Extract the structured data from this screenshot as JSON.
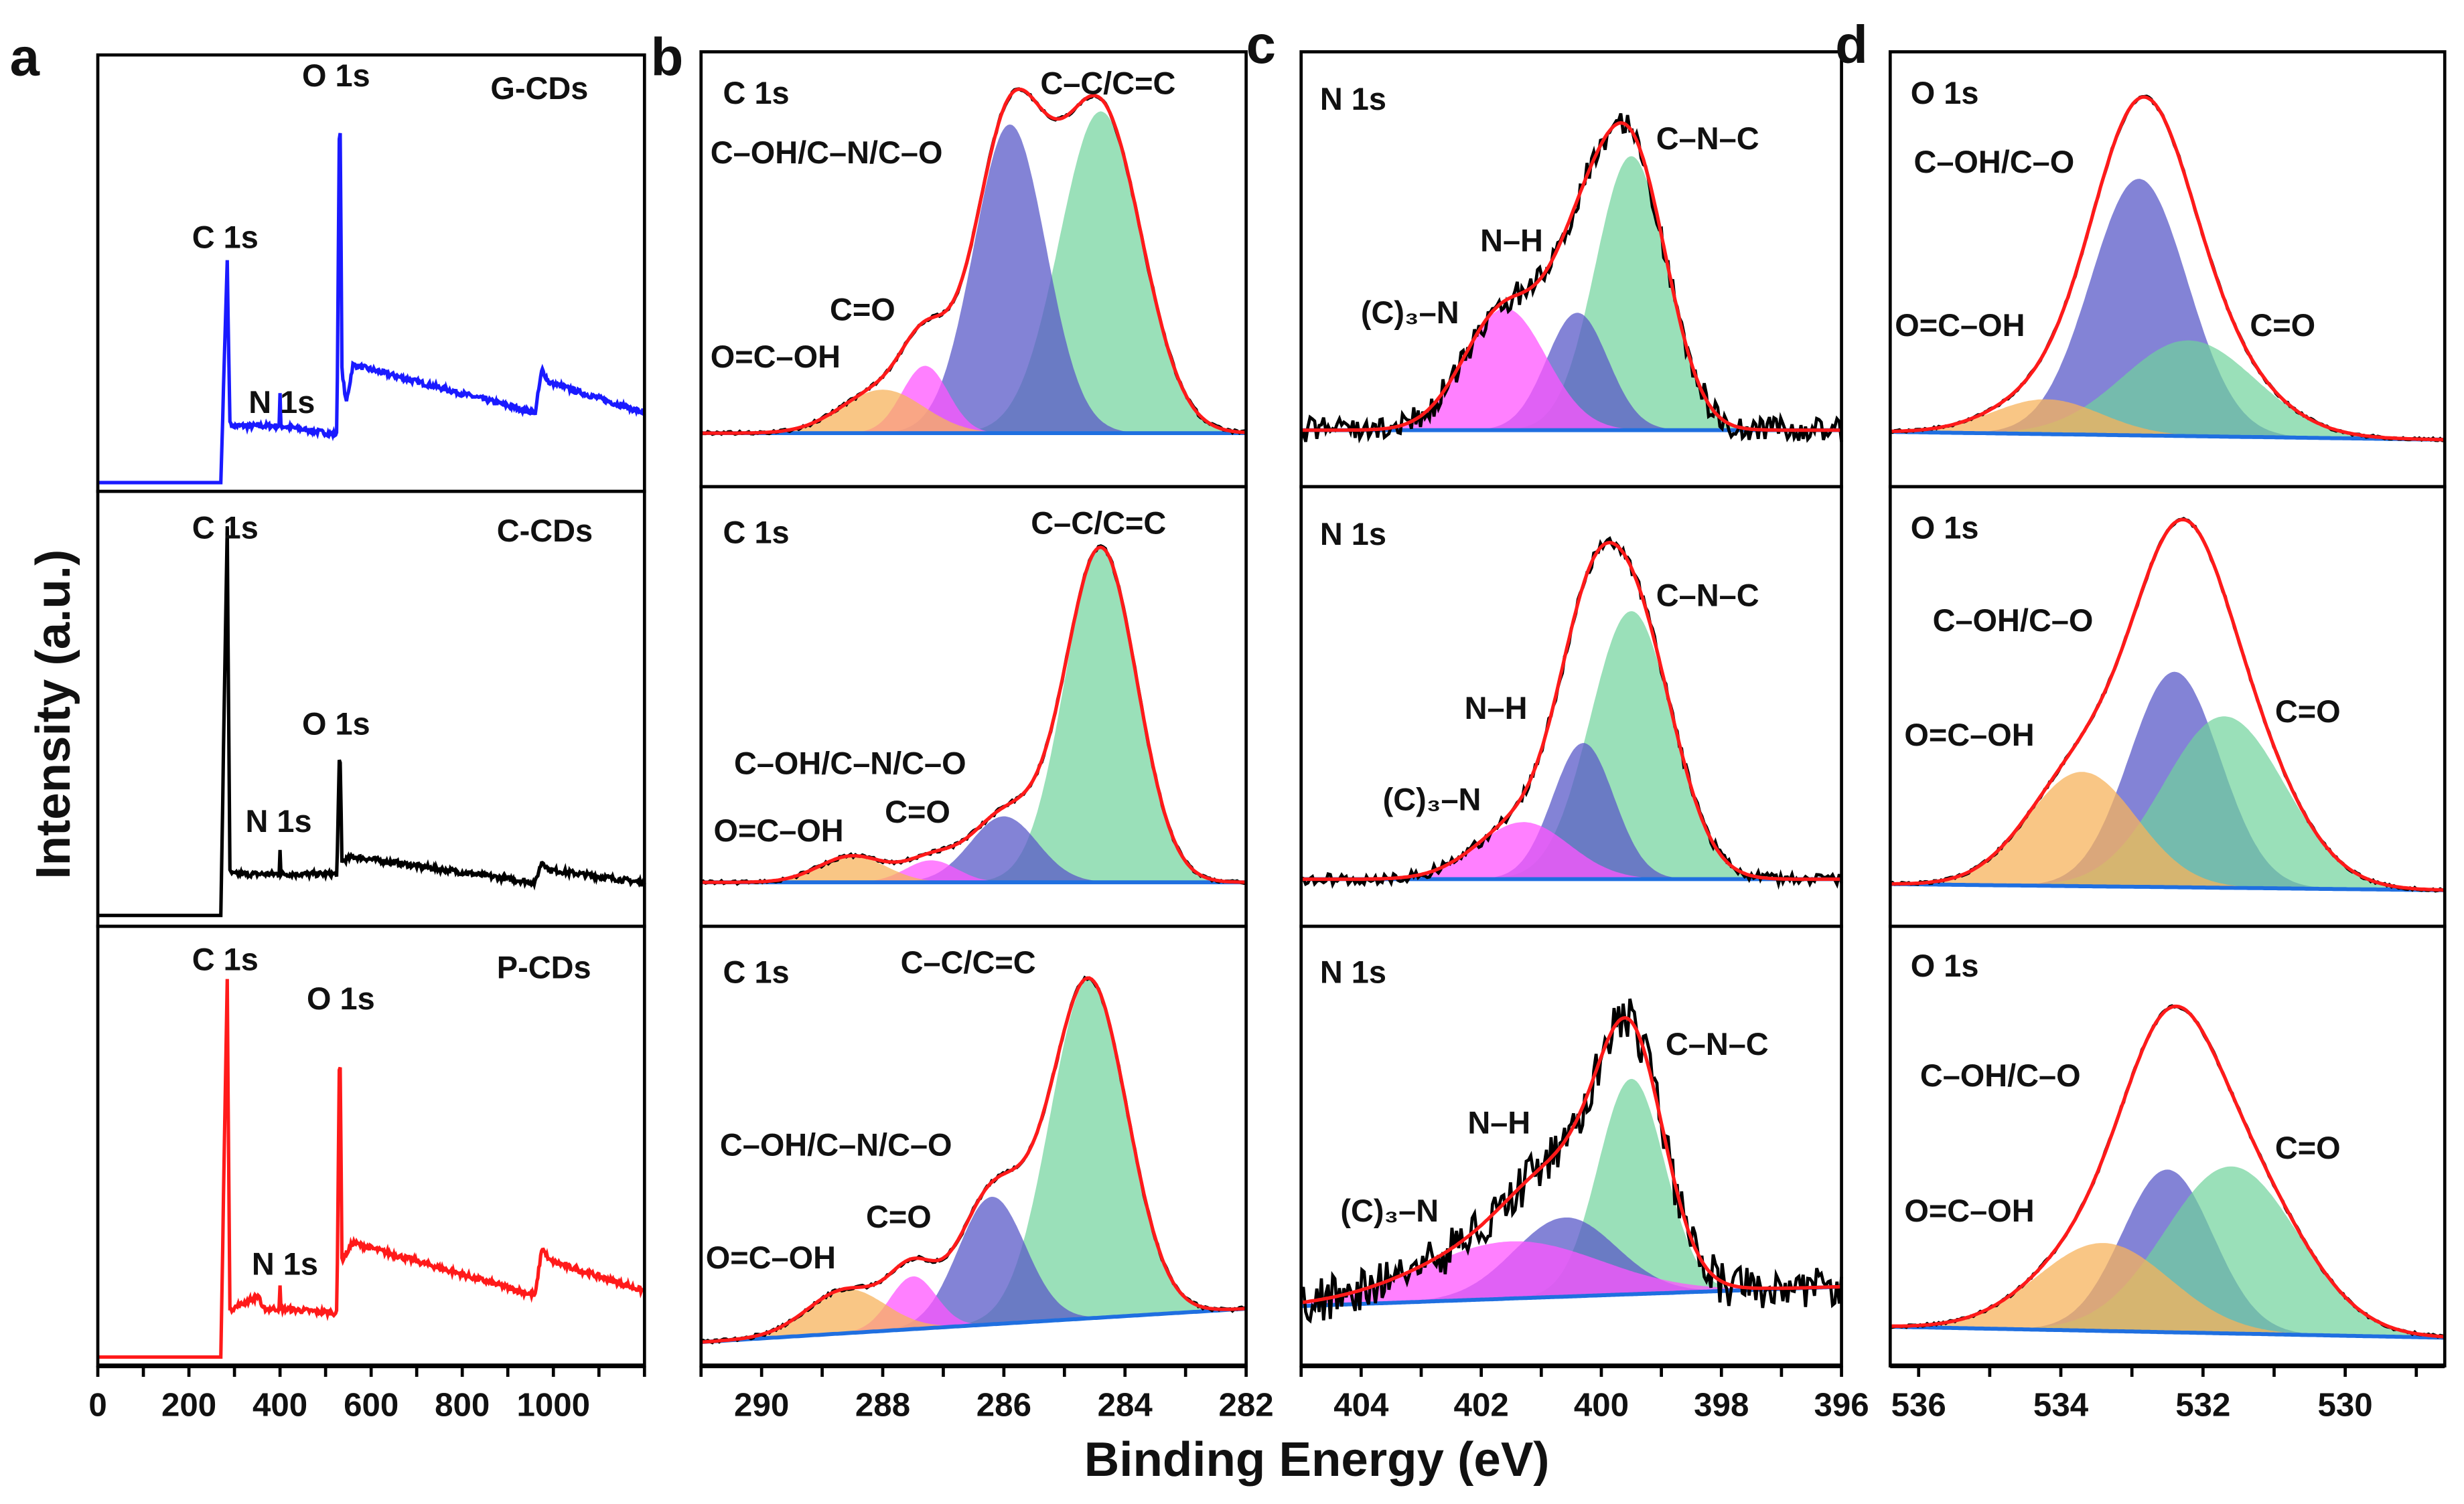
{
  "axis_titles": {
    "x": "Binding Energy (eV)",
    "y": "Intensity (a.u.)"
  },
  "colors": {
    "green": "#6fd39b",
    "blue": "#5a5ac8",
    "magenta": "#ff55ff",
    "orange": "#f7b35c",
    "fit": "#ff1a1a",
    "data": "#000000",
    "baseline": "#1f6fe0",
    "G-CDs": "#1a1aff",
    "C-CDs": "#000000",
    "P-CDs": "#ff1a1a"
  },
  "chart_data": [
    {
      "panel": "a",
      "type": "line",
      "xlim": [
        0,
        1200
      ],
      "ylim": [
        0,
        1
      ],
      "ticks": [
        0,
        200,
        400,
        600,
        800,
        1000
      ],
      "tick_labels": [
        "0",
        "200",
        "400",
        "600",
        "800",
        "1000"
      ],
      "subplots": [
        {
          "sample": "G-CDs",
          "color_key": "G-CDs",
          "labels": [
            "O 1s",
            "C 1s",
            "N 1s"
          ],
          "points": [
            [
              0,
              0.02
            ],
            [
              270,
              0.02
            ],
            [
              284,
              0.53
            ],
            [
              290,
              0.16
            ],
            [
              295,
              0.15
            ],
            [
              398,
              0.15
            ],
            [
              400,
              0.22
            ],
            [
              402,
              0.15
            ],
            [
              525,
              0.13
            ],
            [
              531,
              0.95
            ],
            [
              536,
              0.28
            ],
            [
              545,
              0.2
            ],
            [
              560,
              0.29
            ],
            [
              960,
              0.18
            ],
            [
              975,
              0.28
            ],
            [
              990,
              0.25
            ],
            [
              1200,
              0.18
            ]
          ]
        },
        {
          "sample": "C-CDs",
          "color_key": "C-CDs",
          "labels": [
            "C 1s",
            "O 1s",
            "N 1s"
          ],
          "points": [
            [
              0,
              0.025
            ],
            [
              270,
              0.025
            ],
            [
              284,
              0.92
            ],
            [
              290,
              0.13
            ],
            [
              295,
              0.12
            ],
            [
              398,
              0.12
            ],
            [
              400,
              0.18
            ],
            [
              402,
              0.12
            ],
            [
              525,
              0.12
            ],
            [
              531,
              0.43
            ],
            [
              536,
              0.15
            ],
            [
              560,
              0.16
            ],
            [
              960,
              0.1
            ],
            [
              975,
              0.15
            ],
            [
              990,
              0.13
            ],
            [
              1200,
              0.1
            ]
          ]
        },
        {
          "sample": "P-CDs",
          "color_key": "P-CDs",
          "labels": [
            "C 1s",
            "O 1s",
            "N 1s"
          ],
          "points": [
            [
              0,
              0.02
            ],
            [
              270,
              0.02
            ],
            [
              284,
              0.88
            ],
            [
              290,
              0.13
            ],
            [
              295,
              0.13
            ],
            [
              355,
              0.16
            ],
            [
              360,
              0.13
            ],
            [
              398,
              0.13
            ],
            [
              400,
              0.18
            ],
            [
              402,
              0.13
            ],
            [
              525,
              0.12
            ],
            [
              531,
              0.79
            ],
            [
              536,
              0.24
            ],
            [
              560,
              0.28
            ],
            [
              960,
              0.16
            ],
            [
              975,
              0.27
            ],
            [
              990,
              0.24
            ],
            [
              1200,
              0.17
            ]
          ]
        }
      ]
    },
    {
      "panel": "b",
      "type": "area",
      "xlim": [
        291,
        282
      ],
      "ylim": [
        0,
        1
      ],
      "ticks": [
        290,
        288,
        286,
        284,
        282
      ],
      "tick_labels": [
        "290",
        "288",
        "286",
        "284",
        "282"
      ],
      "subplots": [
        {
          "core_level": "C 1s",
          "baseline": [
            0.123,
            0.123
          ],
          "noise": 0.004,
          "peaks": [
            {
              "label": "C–C/C=C",
              "center": 284.4,
              "height": 0.74,
              "fwhm": 1.6,
              "color_key": "green"
            },
            {
              "label": "C–OH/C–N/C–O",
              "center": 285.9,
              "height": 0.71,
              "fwhm": 1.4,
              "color_key": "blue"
            },
            {
              "label": "C=O",
              "center": 287.3,
              "height": 0.155,
              "fwhm": 0.9,
              "color_key": "magenta"
            },
            {
              "label": "O=C–OH",
              "center": 288.0,
              "height": 0.1,
              "fwhm": 1.6,
              "color_key": "orange"
            }
          ]
        },
        {
          "core_level": "C 1s",
          "baseline": [
            0.1,
            0.1
          ],
          "noise": 0.004,
          "peaks": [
            {
              "label": "C–C/C=C",
              "center": 284.4,
              "height": 0.76,
              "fwhm": 1.4,
              "color_key": "green"
            },
            {
              "label": "C–OH/C–N/C–O",
              "center": 286.0,
              "height": 0.15,
              "fwhm": 1.3,
              "color_key": "blue"
            },
            {
              "label": "C=O",
              "center": 287.2,
              "height": 0.05,
              "fwhm": 1.0,
              "color_key": "magenta"
            },
            {
              "label": "O=C–OH",
              "center": 288.5,
              "height": 0.06,
              "fwhm": 1.3,
              "color_key": "orange"
            }
          ]
        },
        {
          "core_level": "C 1s",
          "baseline": [
            0.054,
            0.13
          ],
          "noise": 0.004,
          "peaks": [
            {
              "label": "C–C/C=C",
              "center": 284.6,
              "height": 0.77,
              "fwhm": 1.5,
              "color_key": "green"
            },
            {
              "label": "C–OH/C–N/C–O",
              "center": 286.2,
              "height": 0.29,
              "fwhm": 1.3,
              "color_key": "blue"
            },
            {
              "label": "C=O",
              "center": 287.5,
              "height": 0.12,
              "fwhm": 0.9,
              "color_key": "magenta"
            },
            {
              "label": "O=C–OH",
              "center": 288.6,
              "height": 0.1,
              "fwhm": 1.5,
              "color_key": "orange"
            }
          ]
        }
      ]
    },
    {
      "panel": "c",
      "type": "area",
      "xlim": [
        405,
        396
      ],
      "ylim": [
        0,
        1
      ],
      "ticks": [
        404,
        402,
        400,
        398,
        396
      ],
      "tick_labels": [
        "404",
        "402",
        "400",
        "398",
        "396"
      ],
      "subplots": [
        {
          "core_level": "N 1s",
          "baseline": [
            0.13,
            0.13
          ],
          "noise": 0.03,
          "peaks": [
            {
              "label": "C–N–C",
              "center": 399.5,
              "height": 0.63,
              "fwhm": 1.4,
              "color_key": "green"
            },
            {
              "label": "N–H",
              "center": 400.4,
              "height": 0.27,
              "fwhm": 1.2,
              "color_key": "blue"
            },
            {
              "label": "(C)₃–N",
              "center": 401.6,
              "height": 0.28,
              "fwhm": 1.6,
              "color_key": "magenta"
            }
          ]
        },
        {
          "core_level": "N 1s",
          "baseline": [
            0.107,
            0.107
          ],
          "noise": 0.012,
          "peaks": [
            {
              "label": "C–N–C",
              "center": 399.5,
              "height": 0.61,
              "fwhm": 1.6,
              "color_key": "green"
            },
            {
              "label": "N–H",
              "center": 400.3,
              "height": 0.31,
              "fwhm": 1.2,
              "color_key": "blue"
            },
            {
              "label": "(C)₃–N",
              "center": 401.3,
              "height": 0.13,
              "fwhm": 1.8,
              "color_key": "magenta"
            }
          ]
        },
        {
          "core_level": "N 1s",
          "baseline": [
            0.136,
            0.18
          ],
          "noise": 0.05,
          "peaks": [
            {
              "label": "C–N–C",
              "center": 399.5,
              "height": 0.49,
              "fwhm": 1.3,
              "color_key": "green"
            },
            {
              "label": "N–H",
              "center": 400.6,
              "height": 0.18,
              "fwhm": 2.0,
              "color_key": "blue"
            },
            {
              "label": "(C)₃–N",
              "center": 401.5,
              "height": 0.13,
              "fwhm": 3.5,
              "color_key": "magenta"
            }
          ]
        }
      ]
    },
    {
      "panel": "d",
      "type": "area",
      "xlim": [
        536.4,
        528.6
      ],
      "ylim": [
        0,
        1
      ],
      "ticks": [
        536,
        534,
        532,
        530
      ],
      "tick_labels": [
        "536",
        "534",
        "532",
        "530"
      ],
      "subplots": [
        {
          "core_level": "O 1s",
          "baseline": [
            0.126,
            0.108
          ],
          "noise": 0.003,
          "peaks": [
            {
              "label": "C–OH/C–O",
              "center": 532.9,
              "height": 0.59,
              "fwhm": 1.6,
              "color_key": "blue"
            },
            {
              "label": "C=O",
              "center": 532.2,
              "height": 0.22,
              "fwhm": 2.2,
              "color_key": "green"
            },
            {
              "label": "O=C–OH",
              "center": 534.2,
              "height": 0.08,
              "fwhm": 1.8,
              "color_key": "orange"
            }
          ]
        },
        {
          "core_level": "O 1s",
          "baseline": [
            0.096,
            0.082
          ],
          "noise": 0.003,
          "peaks": [
            {
              "label": "C–OH/C–O",
              "center": 532.4,
              "height": 0.49,
              "fwhm": 1.5,
              "color_key": "blue"
            },
            {
              "label": "C=O",
              "center": 531.7,
              "height": 0.39,
              "fwhm": 2.0,
              "color_key": "green"
            },
            {
              "label": "O=C–OH",
              "center": 533.7,
              "height": 0.26,
              "fwhm": 1.8,
              "color_key": "orange"
            }
          ]
        },
        {
          "core_level": "O 1s",
          "baseline": [
            0.089,
            0.064
          ],
          "noise": 0.003,
          "peaks": [
            {
              "label": "C–OH/C–O",
              "center": 532.5,
              "height": 0.37,
              "fwhm": 1.5,
              "color_key": "blue"
            },
            {
              "label": "C=O",
              "center": 531.6,
              "height": 0.38,
              "fwhm": 2.2,
              "color_key": "green"
            },
            {
              "label": "O=C–OH",
              "center": 533.4,
              "height": 0.2,
              "fwhm": 2.2,
              "color_key": "orange"
            }
          ]
        }
      ]
    }
  ]
}
